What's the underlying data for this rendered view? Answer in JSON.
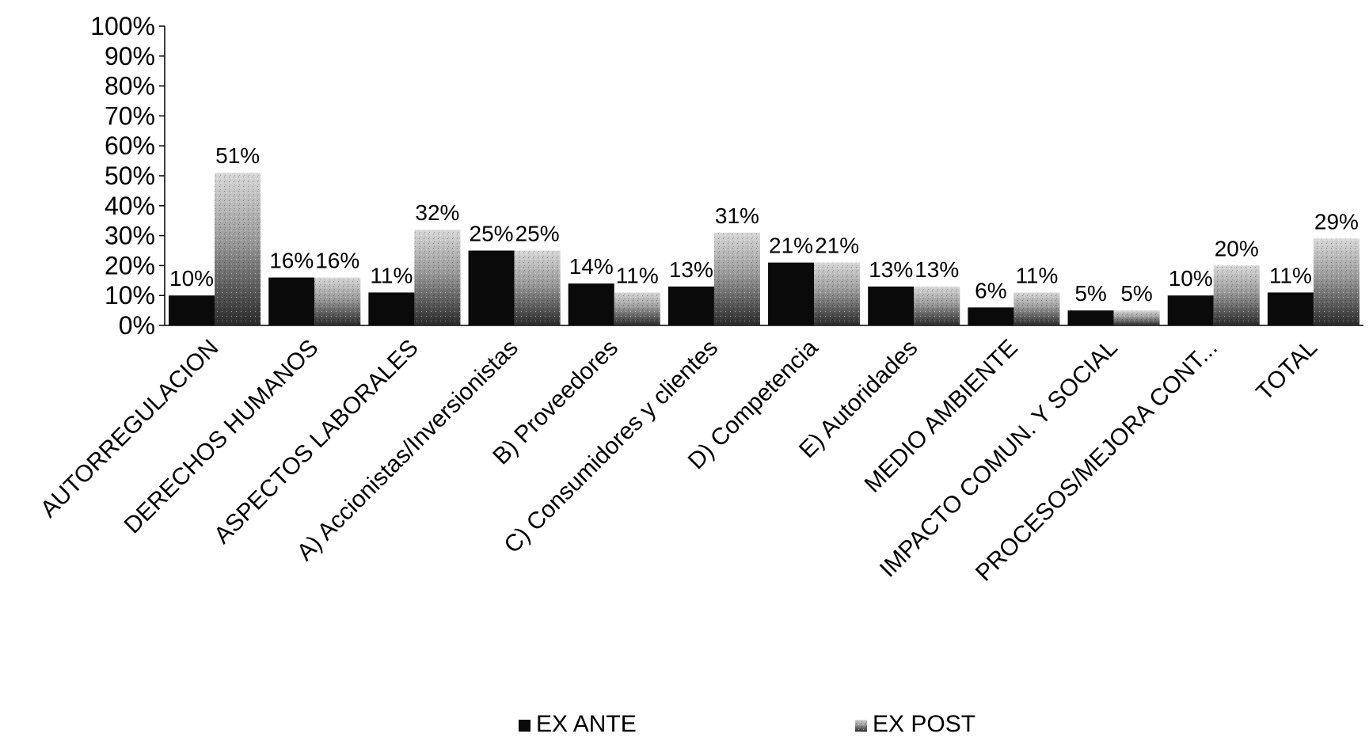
{
  "chart_data": {
    "type": "bar",
    "title": "",
    "xlabel": "",
    "ylabel": "",
    "ylim": [
      0,
      100
    ],
    "y_ticks": [
      "0%",
      "10%",
      "20%",
      "30%",
      "40%",
      "50%",
      "60%",
      "70%",
      "80%",
      "90%",
      "100%"
    ],
    "grid": false,
    "legend_position": "bottom",
    "categories": [
      "AUTORREGULACION",
      "DERECHOS HUMANOS",
      "ASPECTOS LABORALES",
      "A) Accionistas/Inversionistas",
      "B) Proveedores",
      "C) Consumidores y clientes",
      "D) Competencia",
      "E) Autoridades",
      "MEDIO AMBIENTE",
      "IMPACTO COMUN. Y SOCIAL",
      "PROCESOS/MEJORA CONT...",
      "TOTAL"
    ],
    "series": [
      {
        "name": "EX ANTE",
        "color": "#0a0a0a",
        "values": [
          10,
          16,
          11,
          25,
          14,
          13,
          21,
          13,
          6,
          5,
          10,
          11
        ],
        "labels": [
          "10%",
          "16%",
          "11%",
          "25%",
          "14%",
          "13%",
          "21%",
          "13%",
          "6%",
          "5%",
          "10%",
          "11%"
        ]
      },
      {
        "name": "EX POST",
        "color": "#8c8c8c",
        "values": [
          51,
          16,
          32,
          25,
          11,
          31,
          21,
          13,
          11,
          5,
          20,
          29
        ],
        "labels": [
          "51%",
          "16%",
          "32%",
          "25%",
          "11%",
          "31%",
          "21%",
          "13%",
          "11%",
          "5%",
          "20%",
          "29%"
        ]
      }
    ]
  }
}
